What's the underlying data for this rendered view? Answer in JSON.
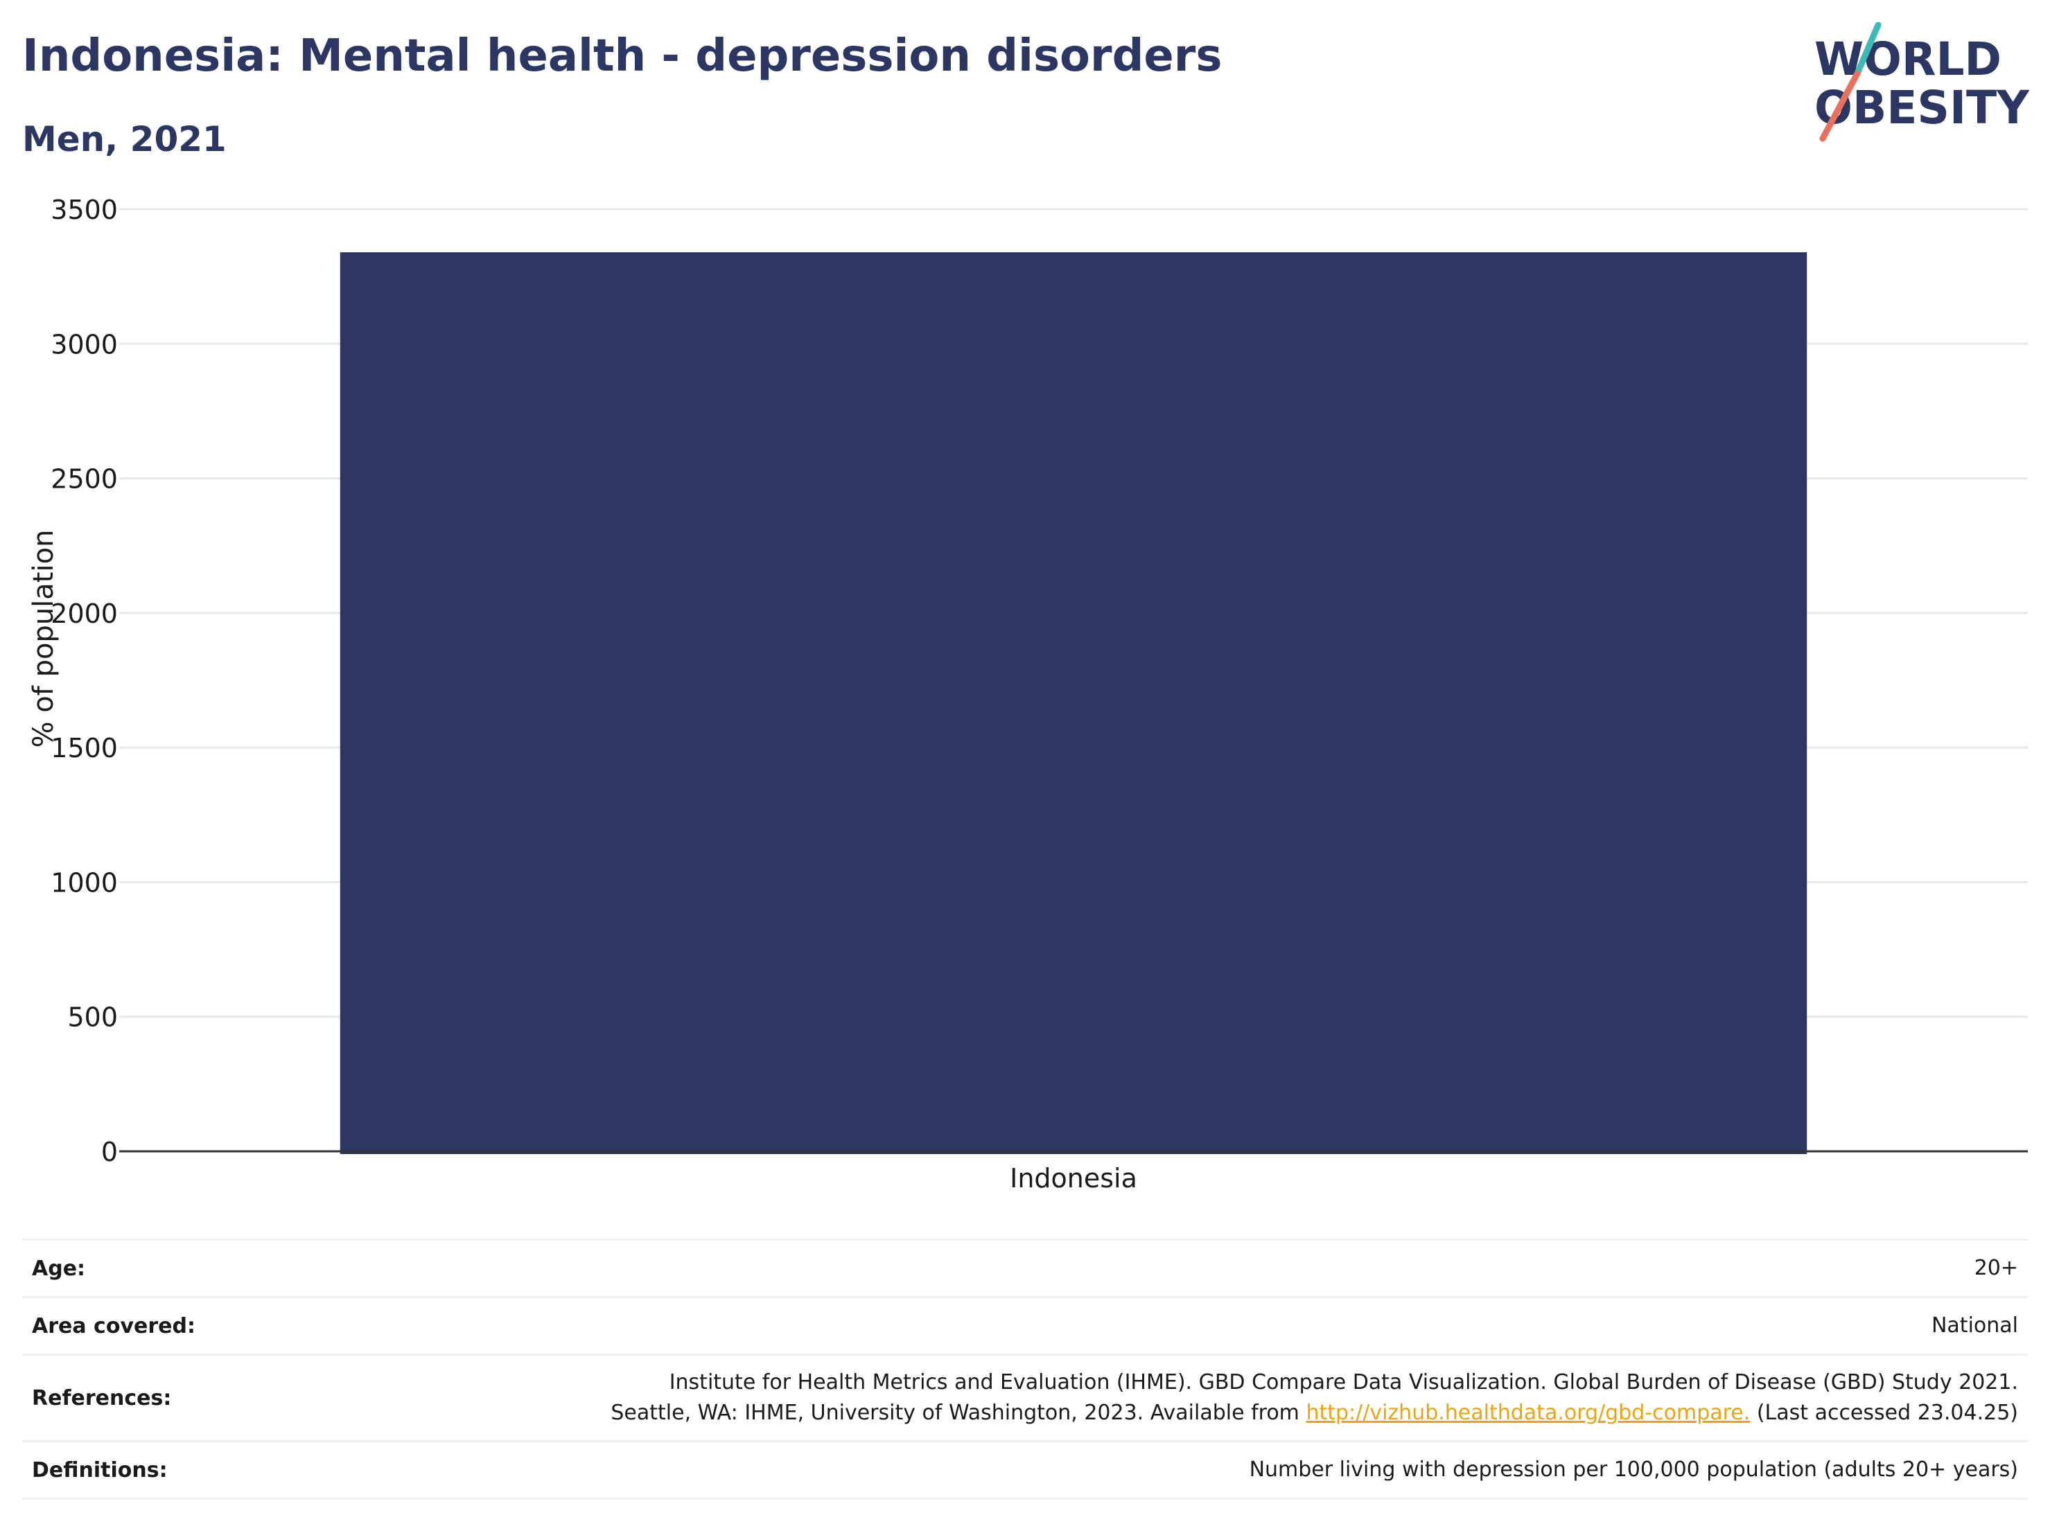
{
  "header": {
    "title": "Indonesia: Mental health - depression disorders",
    "subtitle": "Men, 2021"
  },
  "logo": {
    "line1": "WORLD",
    "line2": "OBESITY",
    "colors": {
      "text": "#2b3762",
      "teal": "#3dbab5",
      "coral": "#e8705d"
    }
  },
  "chart_data": {
    "type": "bar",
    "categories": [
      "Indonesia"
    ],
    "values": [
      3340
    ],
    "ylabel": "% of population",
    "xlabel": "",
    "ylim": [
      0,
      3500
    ],
    "yticks": [
      0,
      500,
      1000,
      1500,
      2000,
      2500,
      3000,
      3500
    ],
    "grid": true,
    "bar_color": "#2b3762"
  },
  "meta": {
    "age": {
      "label": "Age:",
      "value": "20+"
    },
    "area": {
      "label": "Area covered:",
      "value": "National"
    },
    "references": {
      "label": "References:",
      "line1": "Institute for Health Metrics and Evaluation (IHME). GBD Compare Data Visualization. Global Burden of Disease (GBD) Study 2021.",
      "line2_prefix": "Seattle, WA: IHME, University of Washington, 2023. Available from ",
      "link_text": "http://vizhub.healthdata.org/gbd-compare.",
      "line2_suffix": " (Last accessed 23.04.25)"
    },
    "definitions": {
      "label": "Definitions:",
      "value": "Number living with depression per 100,000 population (adults 20+ years)"
    }
  }
}
